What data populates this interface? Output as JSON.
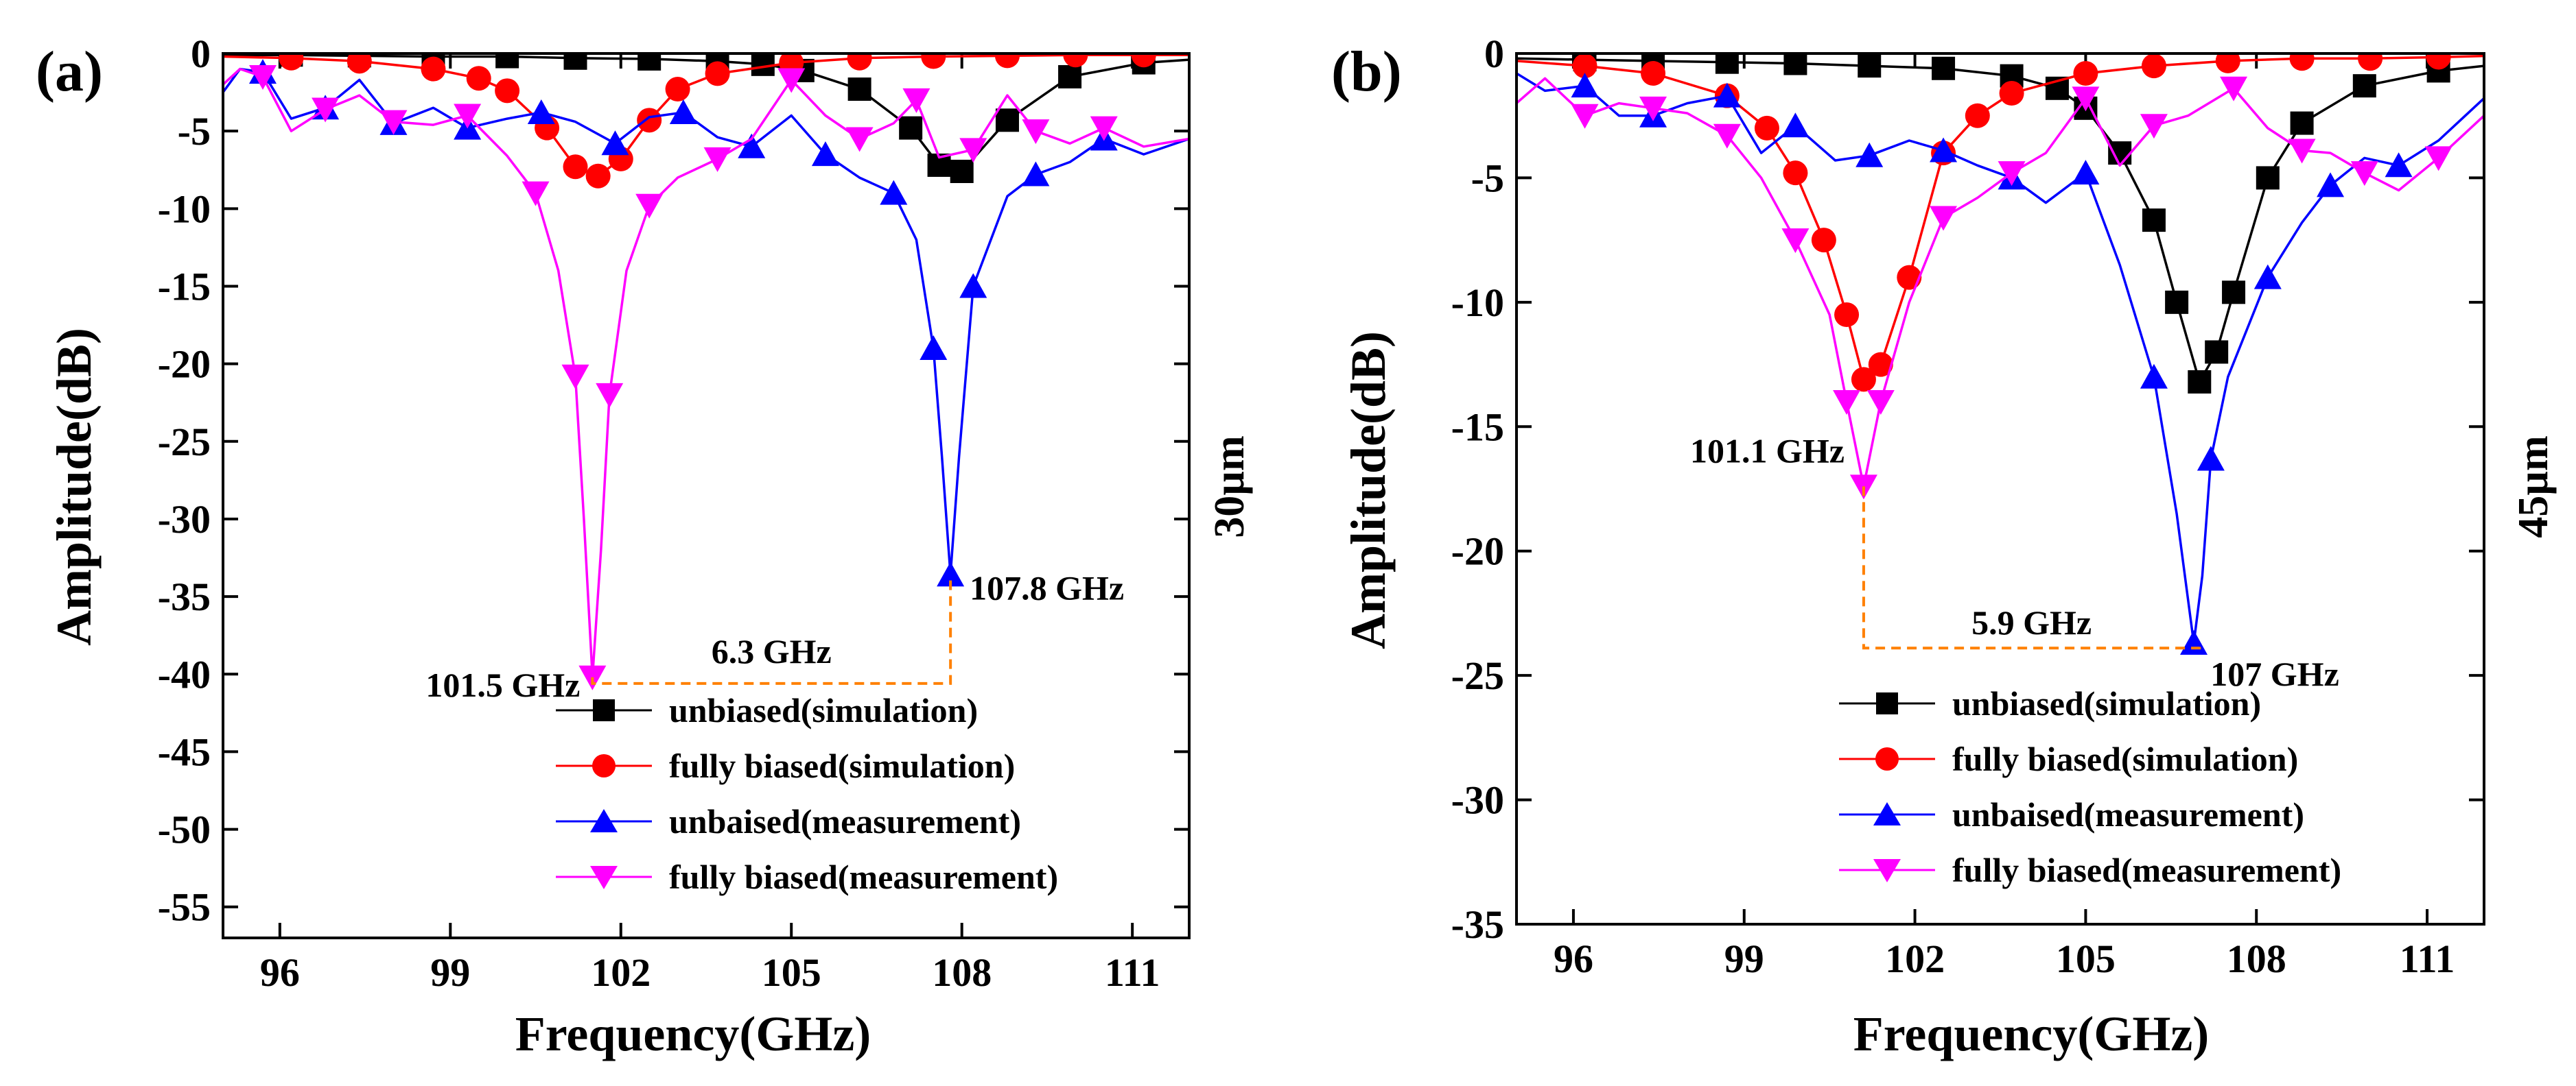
{
  "chart_data": [
    {
      "type": "line",
      "panel_label": "(a)",
      "side_label": "30µm",
      "xlabel": "Frequency(GHz)",
      "ylabel": "Amplitude(dB)",
      "xlim": [
        95,
        112
      ],
      "ylim": [
        -57,
        0
      ],
      "xticks": [
        96,
        99,
        102,
        105,
        108,
        111
      ],
      "yticks": [
        0,
        -5,
        -10,
        -15,
        -20,
        -25,
        -30,
        -35,
        -40,
        -45,
        -50,
        -55
      ],
      "xtick_labels": [
        "96",
        "99",
        "102",
        "105",
        "108",
        "111"
      ],
      "ytick_labels": [
        "0",
        "-5",
        "-10",
        "-15",
        "-20",
        "-25",
        "-30",
        "-35",
        "-40",
        "-45",
        "-50",
        "-55"
      ],
      "legend_position": "bottom-right",
      "series": [
        {
          "name": "unbiased(simulation)",
          "color": "#000000",
          "marker": "square",
          "x": [
            95,
            96.2,
            97.4,
            98.7,
            100,
            101.2,
            102.5,
            103.7,
            104.5,
            105.2,
            106.2,
            107.1,
            107.6,
            108,
            108.8,
            109.9,
            111.2,
            112
          ],
          "y": [
            -0.1,
            -0.1,
            -0.15,
            -0.2,
            -0.2,
            -0.3,
            -0.35,
            -0.5,
            -0.7,
            -1.1,
            -2.3,
            -4.8,
            -7.2,
            -7.6,
            -4.3,
            -1.5,
            -0.6,
            -0.4
          ]
        },
        {
          "name": "fully biased(simulation)",
          "color": "#ff0000",
          "marker": "circle",
          "x": [
            95,
            96.2,
            97.4,
            98.7,
            99.5,
            100,
            100.7,
            101.2,
            101.6,
            102,
            102.5,
            103,
            103.7,
            105,
            106.2,
            107.5,
            108.8,
            110,
            111.2,
            112
          ],
          "y": [
            -0.2,
            -0.3,
            -0.5,
            -1.0,
            -1.6,
            -2.4,
            -4.8,
            -7.3,
            -7.9,
            -6.8,
            -4.3,
            -2.3,
            -1.3,
            -0.6,
            -0.3,
            -0.2,
            -0.15,
            -0.1,
            -0.1,
            -0.1
          ]
        },
        {
          "name": "unbaised(measurement)",
          "color": "#0000ff",
          "marker": "triangle-up",
          "x": [
            95,
            95.3,
            95.7,
            96.2,
            96.8,
            97.4,
            98,
            98.7,
            99.3,
            100,
            100.6,
            101.2,
            101.9,
            102.5,
            103.1,
            103.7,
            104.3,
            105,
            105.6,
            106.2,
            106.8,
            107.2,
            107.5,
            107.65,
            107.8,
            107.95,
            108.2,
            108.8,
            109.3,
            109.9,
            110.5,
            111.2,
            112
          ],
          "y": [
            -2.5,
            -1.0,
            -1.2,
            -4.2,
            -3.5,
            -1.7,
            -4.5,
            -3.5,
            -4.8,
            -4.2,
            -3.8,
            -4.4,
            -5.8,
            -4.1,
            -3.8,
            -5.4,
            -6.0,
            -4.0,
            -6.5,
            -8.0,
            -9.0,
            -12.0,
            -19.0,
            -26.0,
            -33.6,
            -26.0,
            -15.0,
            -9.2,
            -7.8,
            -7.0,
            -5.5,
            -6.5,
            -5.5
          ]
        },
        {
          "name": "fully biased(measurement)",
          "color": "#ff00ff",
          "marker": "triangle-down",
          "x": [
            95,
            95.3,
            95.7,
            96.2,
            96.8,
            97.4,
            98,
            98.7,
            99.3,
            100,
            100.5,
            100.9,
            101.2,
            101.35,
            101.5,
            101.65,
            101.8,
            102.1,
            102.5,
            103,
            103.7,
            104.3,
            105,
            105.6,
            106.2,
            106.8,
            107.2,
            107.6,
            108.2,
            108.8,
            109.3,
            109.9,
            110.5,
            111.2,
            112
          ],
          "y": [
            -2.0,
            -1.0,
            -1.5,
            -5.0,
            -3.6,
            -2.7,
            -4.4,
            -4.6,
            -4.0,
            -6.6,
            -9.0,
            -14.0,
            -20.8,
            -30.0,
            -40.2,
            -32.0,
            -22.0,
            -14.0,
            -9.8,
            -8.0,
            -6.8,
            -5.5,
            -1.7,
            -4.0,
            -5.5,
            -4.5,
            -3.0,
            -6.7,
            -6.2,
            -2.7,
            -5.0,
            -5.8,
            -4.8,
            -6.0,
            -5.5
          ]
        }
      ],
      "annotations": [
        {
          "text": "101.5 GHz",
          "x": 101.5,
          "y": -40.2
        },
        {
          "text": "107.8 GHz",
          "x": 107.8,
          "y": -33.6
        },
        {
          "text": "6.3 GHz",
          "x_from": 101.5,
          "x_to": 107.8,
          "y": -40.6
        }
      ]
    },
    {
      "type": "line",
      "panel_label": "(b)",
      "side_label": "45µm",
      "xlabel": "Frequency(GHz)",
      "ylabel": "Amplitude(dB)",
      "xlim": [
        95,
        112
      ],
      "ylim": [
        -35,
        0
      ],
      "xticks": [
        96,
        99,
        102,
        105,
        108,
        111
      ],
      "yticks": [
        0,
        -5,
        -10,
        -15,
        -20,
        -25,
        -30,
        -35
      ],
      "xtick_labels": [
        "96",
        "99",
        "102",
        "105",
        "108",
        "111"
      ],
      "ytick_labels": [
        "0",
        "-5",
        "-10",
        "-15",
        "-20",
        "-25",
        "-30",
        "-35"
      ],
      "legend_position": "bottom-right",
      "series": [
        {
          "name": "unbiased(simulation)",
          "color": "#000000",
          "marker": "square",
          "x": [
            95,
            96.2,
            97.4,
            98.7,
            99.9,
            101.2,
            102.5,
            103.7,
            104.5,
            105,
            105.6,
            106.2,
            106.6,
            107.0,
            107.3,
            107.6,
            108.2,
            108.8,
            109.9,
            111.2,
            112
          ],
          "y": [
            -0.2,
            -0.25,
            -0.3,
            -0.35,
            -0.4,
            -0.5,
            -0.6,
            -0.9,
            -1.4,
            -2.2,
            -4.0,
            -6.7,
            -10.0,
            -13.2,
            -12.0,
            -9.6,
            -5.0,
            -2.8,
            -1.3,
            -0.7,
            -0.5
          ]
        },
        {
          "name": "fully biased(simulation)",
          "color": "#ff0000",
          "marker": "circle",
          "x": [
            95,
            96.2,
            97.4,
            98.7,
            99.4,
            99.9,
            100.4,
            100.8,
            101.1,
            101.4,
            101.9,
            102.5,
            103.1,
            103.7,
            105,
            106.2,
            107.5,
            108.8,
            110,
            111.2,
            112
          ],
          "y": [
            -0.3,
            -0.5,
            -0.8,
            -1.7,
            -3.0,
            -4.8,
            -7.5,
            -10.5,
            -13.1,
            -12.5,
            -9.0,
            -4.0,
            -2.5,
            -1.6,
            -0.8,
            -0.5,
            -0.3,
            -0.2,
            -0.2,
            -0.15,
            -0.1
          ]
        },
        {
          "name": "unbaised(measurement)",
          "color": "#0000ff",
          "marker": "triangle-up",
          "x": [
            95,
            95.5,
            96.2,
            96.8,
            97.4,
            98,
            98.7,
            99.3,
            99.9,
            100.6,
            101.2,
            101.9,
            102.5,
            103.1,
            103.7,
            104.3,
            105,
            105.6,
            106.2,
            106.6,
            106.9,
            107.05,
            107.2,
            107.5,
            108.2,
            108.8,
            109.3,
            109.9,
            110.5,
            111.2,
            112
          ],
          "y": [
            -0.8,
            -1.5,
            -1.3,
            -2.5,
            -2.5,
            -2.0,
            -1.7,
            -4.0,
            -2.9,
            -4.3,
            -4.1,
            -3.5,
            -3.9,
            -4.5,
            -5.0,
            -6.0,
            -4.8,
            -8.5,
            -13.0,
            -18.5,
            -23.7,
            -21.0,
            -16.3,
            -13.0,
            -9.0,
            -6.8,
            -5.3,
            -4.2,
            -4.5,
            -3.5,
            -1.8
          ]
        },
        {
          "name": "fully biased(measurement)",
          "color": "#ff00ff",
          "marker": "triangle-down",
          "x": [
            95,
            95.5,
            96.2,
            96.8,
            97.4,
            98,
            98.7,
            99.3,
            99.9,
            100.5,
            100.8,
            101.1,
            101.4,
            101.9,
            102.5,
            103.1,
            103.7,
            104.3,
            105,
            105.6,
            106.2,
            106.8,
            107.6,
            108.2,
            108.8,
            109.3,
            109.9,
            110.5,
            111.2,
            112
          ],
          "y": [
            -2.0,
            -1.0,
            -2.5,
            -2.0,
            -2.2,
            -2.4,
            -3.3,
            -5.0,
            -7.5,
            -10.5,
            -14.0,
            -17.4,
            -14.0,
            -10.0,
            -6.6,
            -5.8,
            -4.8,
            -4.0,
            -1.8,
            -4.5,
            -2.9,
            -2.5,
            -1.4,
            -3.0,
            -3.9,
            -4.0,
            -4.8,
            -5.5,
            -4.2,
            -2.5
          ]
        }
      ],
      "annotations": [
        {
          "text": "101.1 GHz",
          "x": 101.1,
          "y": -17.4
        },
        {
          "text": "107 GHz",
          "x": 107.0,
          "y": -23.7
        },
        {
          "text": "5.9 GHz",
          "x_from": 101.1,
          "x_to": 107.0,
          "y": -23.9
        }
      ]
    }
  ]
}
